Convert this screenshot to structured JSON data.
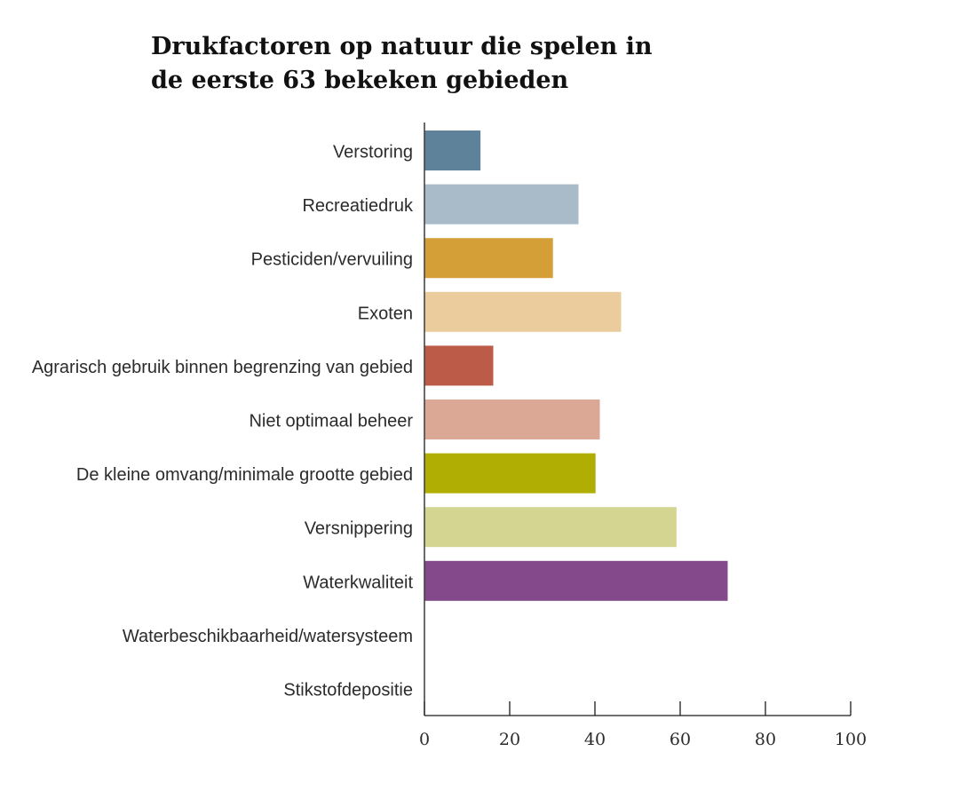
{
  "chart_data": {
    "type": "bar",
    "orientation": "horizontal",
    "title_lines": [
      "Drukfactoren op natuur die spelen in",
      "de eerste 63 bekeken gebieden"
    ],
    "xlabel": "",
    "ylabel": "",
    "categories": [
      "Verstoring",
      "Recreatiedruk",
      "Pesticiden/vervuiling",
      "Exoten",
      "Agrarisch gebruik binnen begrenzing van gebied",
      "Niet optimaal beheer",
      "De kleine omvang/minimale grootte gebied",
      "Versnippering",
      "Waterkwaliteit",
      "Waterbeschikbaarheid/watersysteem",
      "Stikstofdepositie"
    ],
    "values": [
      13,
      36,
      30,
      46,
      16,
      41,
      40,
      59,
      71,
      0,
      0
    ],
    "colors": [
      "#5e8299",
      "#a9bac8",
      "#d49f37",
      "#ebcd9d",
      "#bb5b48",
      "#dca896",
      "#b0ae02",
      "#d5d592",
      "#83498a",
      "#ffffff",
      "#ffffff"
    ],
    "xlim": [
      0,
      100
    ],
    "xticks": [
      "0",
      "20",
      "40",
      "60",
      "80",
      "100"
    ],
    "grid": false,
    "legend": "none"
  }
}
